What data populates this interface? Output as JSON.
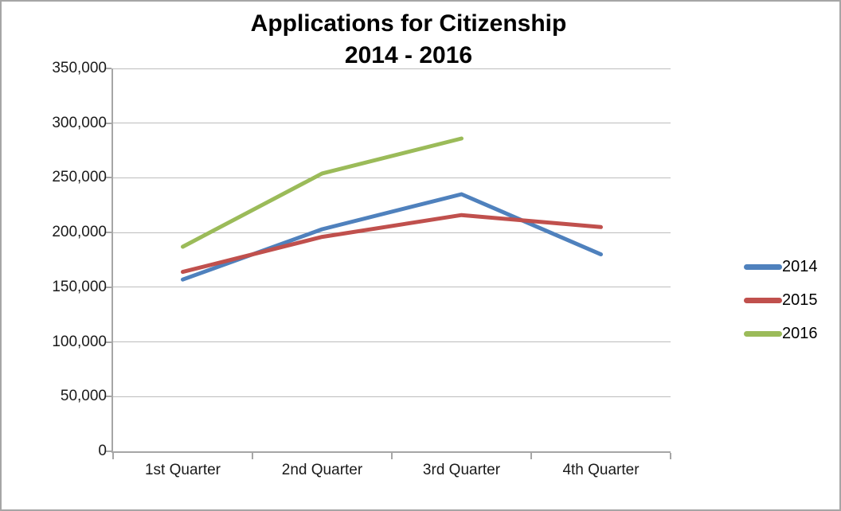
{
  "title": {
    "line1": "Applications for Citizenship",
    "line2": "2014 - 2016"
  },
  "chart_data": {
    "type": "line",
    "title": "Applications for Citizenship 2014 - 2016",
    "categories": [
      "1st Quarter",
      "2nd Quarter",
      "3rd Quarter",
      "4th Quarter"
    ],
    "series": [
      {
        "name": "2014",
        "color": "#4F81BD",
        "values": [
          157000,
          203000,
          235000,
          180000
        ]
      },
      {
        "name": "2015",
        "color": "#C0504D",
        "values": [
          164000,
          196000,
          216000,
          205000
        ]
      },
      {
        "name": "2016",
        "color": "#9BBB59",
        "values": [
          187000,
          254000,
          286000,
          null
        ]
      }
    ],
    "xlabel": "",
    "ylabel": "",
    "ylim": [
      0,
      350000
    ],
    "ytick_interval": 50000,
    "ytick_labels": [
      "0",
      "50,000",
      "100,000",
      "150,000",
      "200,000",
      "250,000",
      "300,000",
      "350,000"
    ],
    "grid": "horizontal",
    "legend_position": "right",
    "line_width": 5,
    "gridline_color": "#BDBDBD",
    "axis_color": "#A6A6A6"
  }
}
